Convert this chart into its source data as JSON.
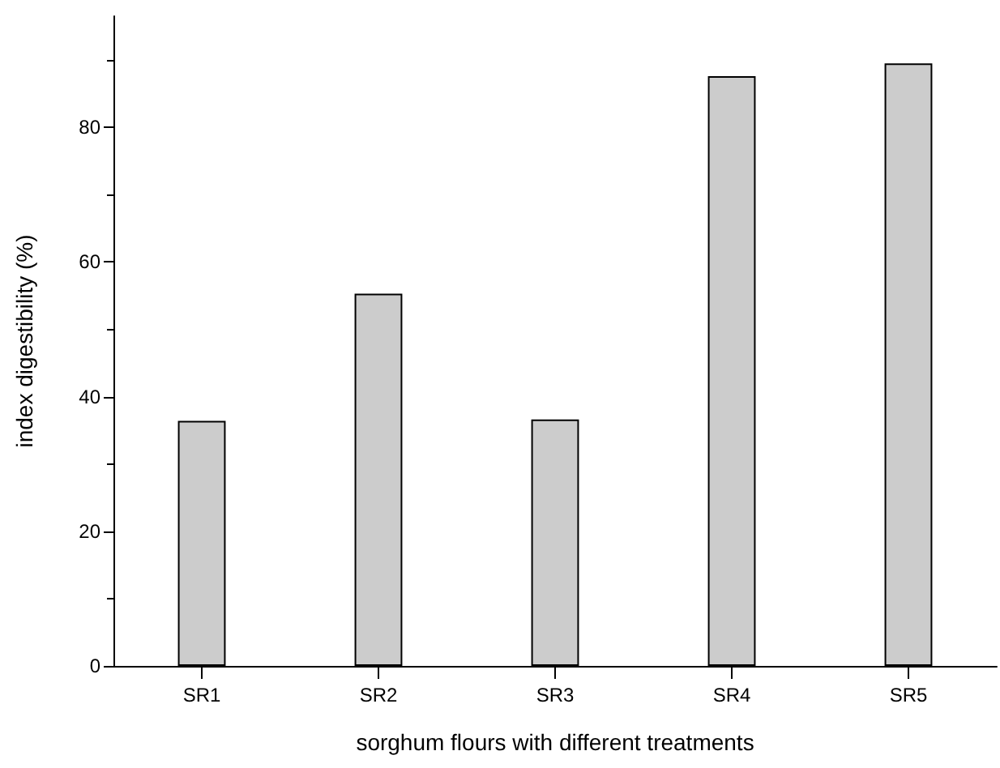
{
  "chart_data": {
    "type": "bar",
    "xlabel": "sorghum flours with different treatments",
    "ylabel": "index digestibility (%)",
    "categories": [
      "SR1",
      "SR2",
      "SR3",
      "SR4",
      "SR5"
    ],
    "values": [
      36.4,
      55.3,
      36.6,
      87.6,
      89.5
    ],
    "color": "#cccccc",
    "ylim": [
      0,
      96.5
    ],
    "yticks": [
      0,
      20,
      40,
      60,
      80
    ],
    "grid": false
  }
}
